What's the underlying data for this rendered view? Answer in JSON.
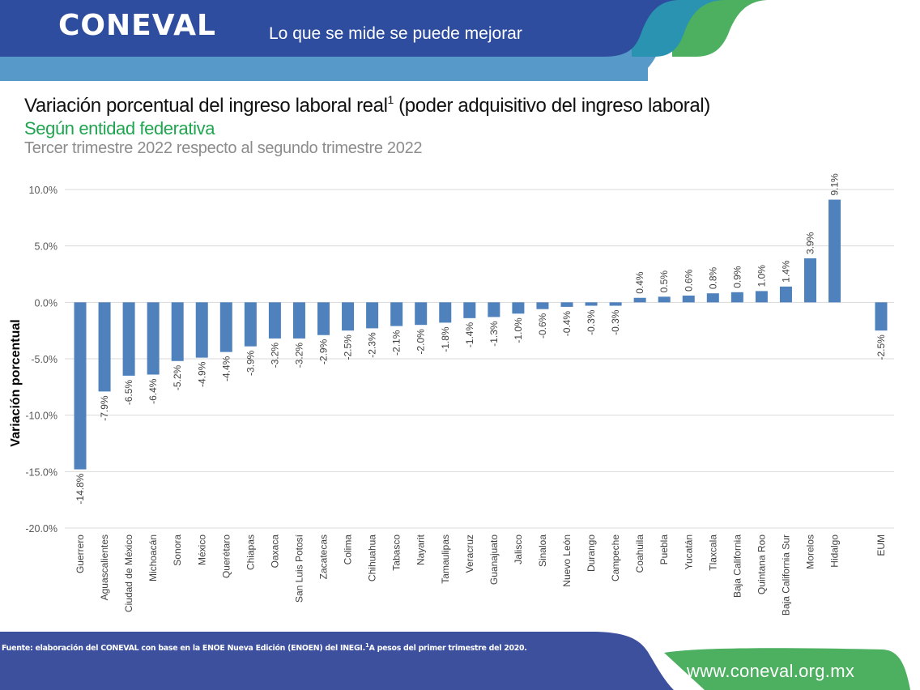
{
  "header": {
    "logo_text": "CONEVAL",
    "slogan": "Lo que se mide se puede mejorar",
    "colors": {
      "dark_blue": "#2f4d9f",
      "light_blue": "#5799c8",
      "teal": "#2a93b1",
      "green": "#4daf60"
    }
  },
  "title": {
    "main": "Variación porcentual del ingreso laboral real",
    "superscript": "1",
    "main_suffix": " (poder adquisitivo del ingreso laboral)",
    "subtitle_green": "Según entidad federativa",
    "subtitle_gray": "Tercer trimestre 2022 respecto al segundo trimestre 2022"
  },
  "chart_data": {
    "type": "bar",
    "title": "Variación porcentual del ingreso laboral real (poder adquisitivo del ingreso laboral)",
    "xlabel": "",
    "ylabel": "Variación porcentual",
    "ylim": [
      -20,
      10
    ],
    "yticks": [
      10,
      5,
      0,
      -5,
      -10,
      -15,
      -20
    ],
    "ytick_labels": [
      "10.0%",
      "5.0%",
      "0.0%",
      "-5.0%",
      "-10.0%",
      "-15.0%",
      "-20.0%"
    ],
    "grid": true,
    "bar_color": "#4f81bd",
    "categories": [
      "Guerrero",
      "Aguascalientes",
      "Ciudad de México",
      "Michoacán",
      "Sonora",
      "México",
      "Querétaro",
      "Chiapas",
      "Oaxaca",
      "San Luis Potosí",
      "Zacatecas",
      "Colima",
      "Chihuahua",
      "Tabasco",
      "Nayarit",
      "Tamaulipas",
      "Veracruz",
      "Guanajuato",
      "Jalisco",
      "Sinaloa",
      "Nuevo León",
      "Durango",
      "Campeche",
      "Coahuila",
      "Puebla",
      "Yucatán",
      "Tlaxcala",
      "Baja California",
      "Quintana Roo",
      "Baja California Sur",
      "Morelos",
      "Hidalgo",
      "EUM"
    ],
    "values": [
      -14.8,
      -7.9,
      -6.5,
      -6.4,
      -5.2,
      -4.9,
      -4.4,
      -3.9,
      -3.2,
      -3.2,
      -2.9,
      -2.5,
      -2.3,
      -2.1,
      -2.0,
      -1.8,
      -1.4,
      -1.3,
      -1.0,
      -0.6,
      -0.4,
      -0.3,
      -0.3,
      0.4,
      0.5,
      0.6,
      0.8,
      0.9,
      1.0,
      1.4,
      3.9,
      9.1,
      -2.5
    ],
    "data_labels": [
      "-14.8%",
      "-7.9%",
      "-6.5%",
      "-6.4%",
      "-5.2%",
      "-4.9%",
      "-4.4%",
      "-3.9%",
      "-3.2%",
      "-3.2%",
      "-2.9%",
      "-2.5%",
      "-2.3%",
      "-2.1%",
      "-2.0%",
      "-1.8%",
      "-1.4%",
      "-1.3%",
      "-1.0%",
      "-0.6%",
      "-0.4%",
      "-0.3%",
      "-0.3%",
      "0.4%",
      "0.5%",
      "0.6%",
      "0.8%",
      "0.9%",
      "1.0%",
      "1.4%",
      "3.9%",
      "9.1%",
      "-2.5%"
    ],
    "separated_last_category": true,
    "legend": "none"
  },
  "footer": {
    "source_text": "Fuente: elaboración del CONEVAL con base en la ENOE Nueva Edición (ENOEN) del INEGI.",
    "source_superscript": "1",
    "source_note": "A pesos del primer trimestre del 2020.",
    "website": "www.coneval.org.mx"
  }
}
